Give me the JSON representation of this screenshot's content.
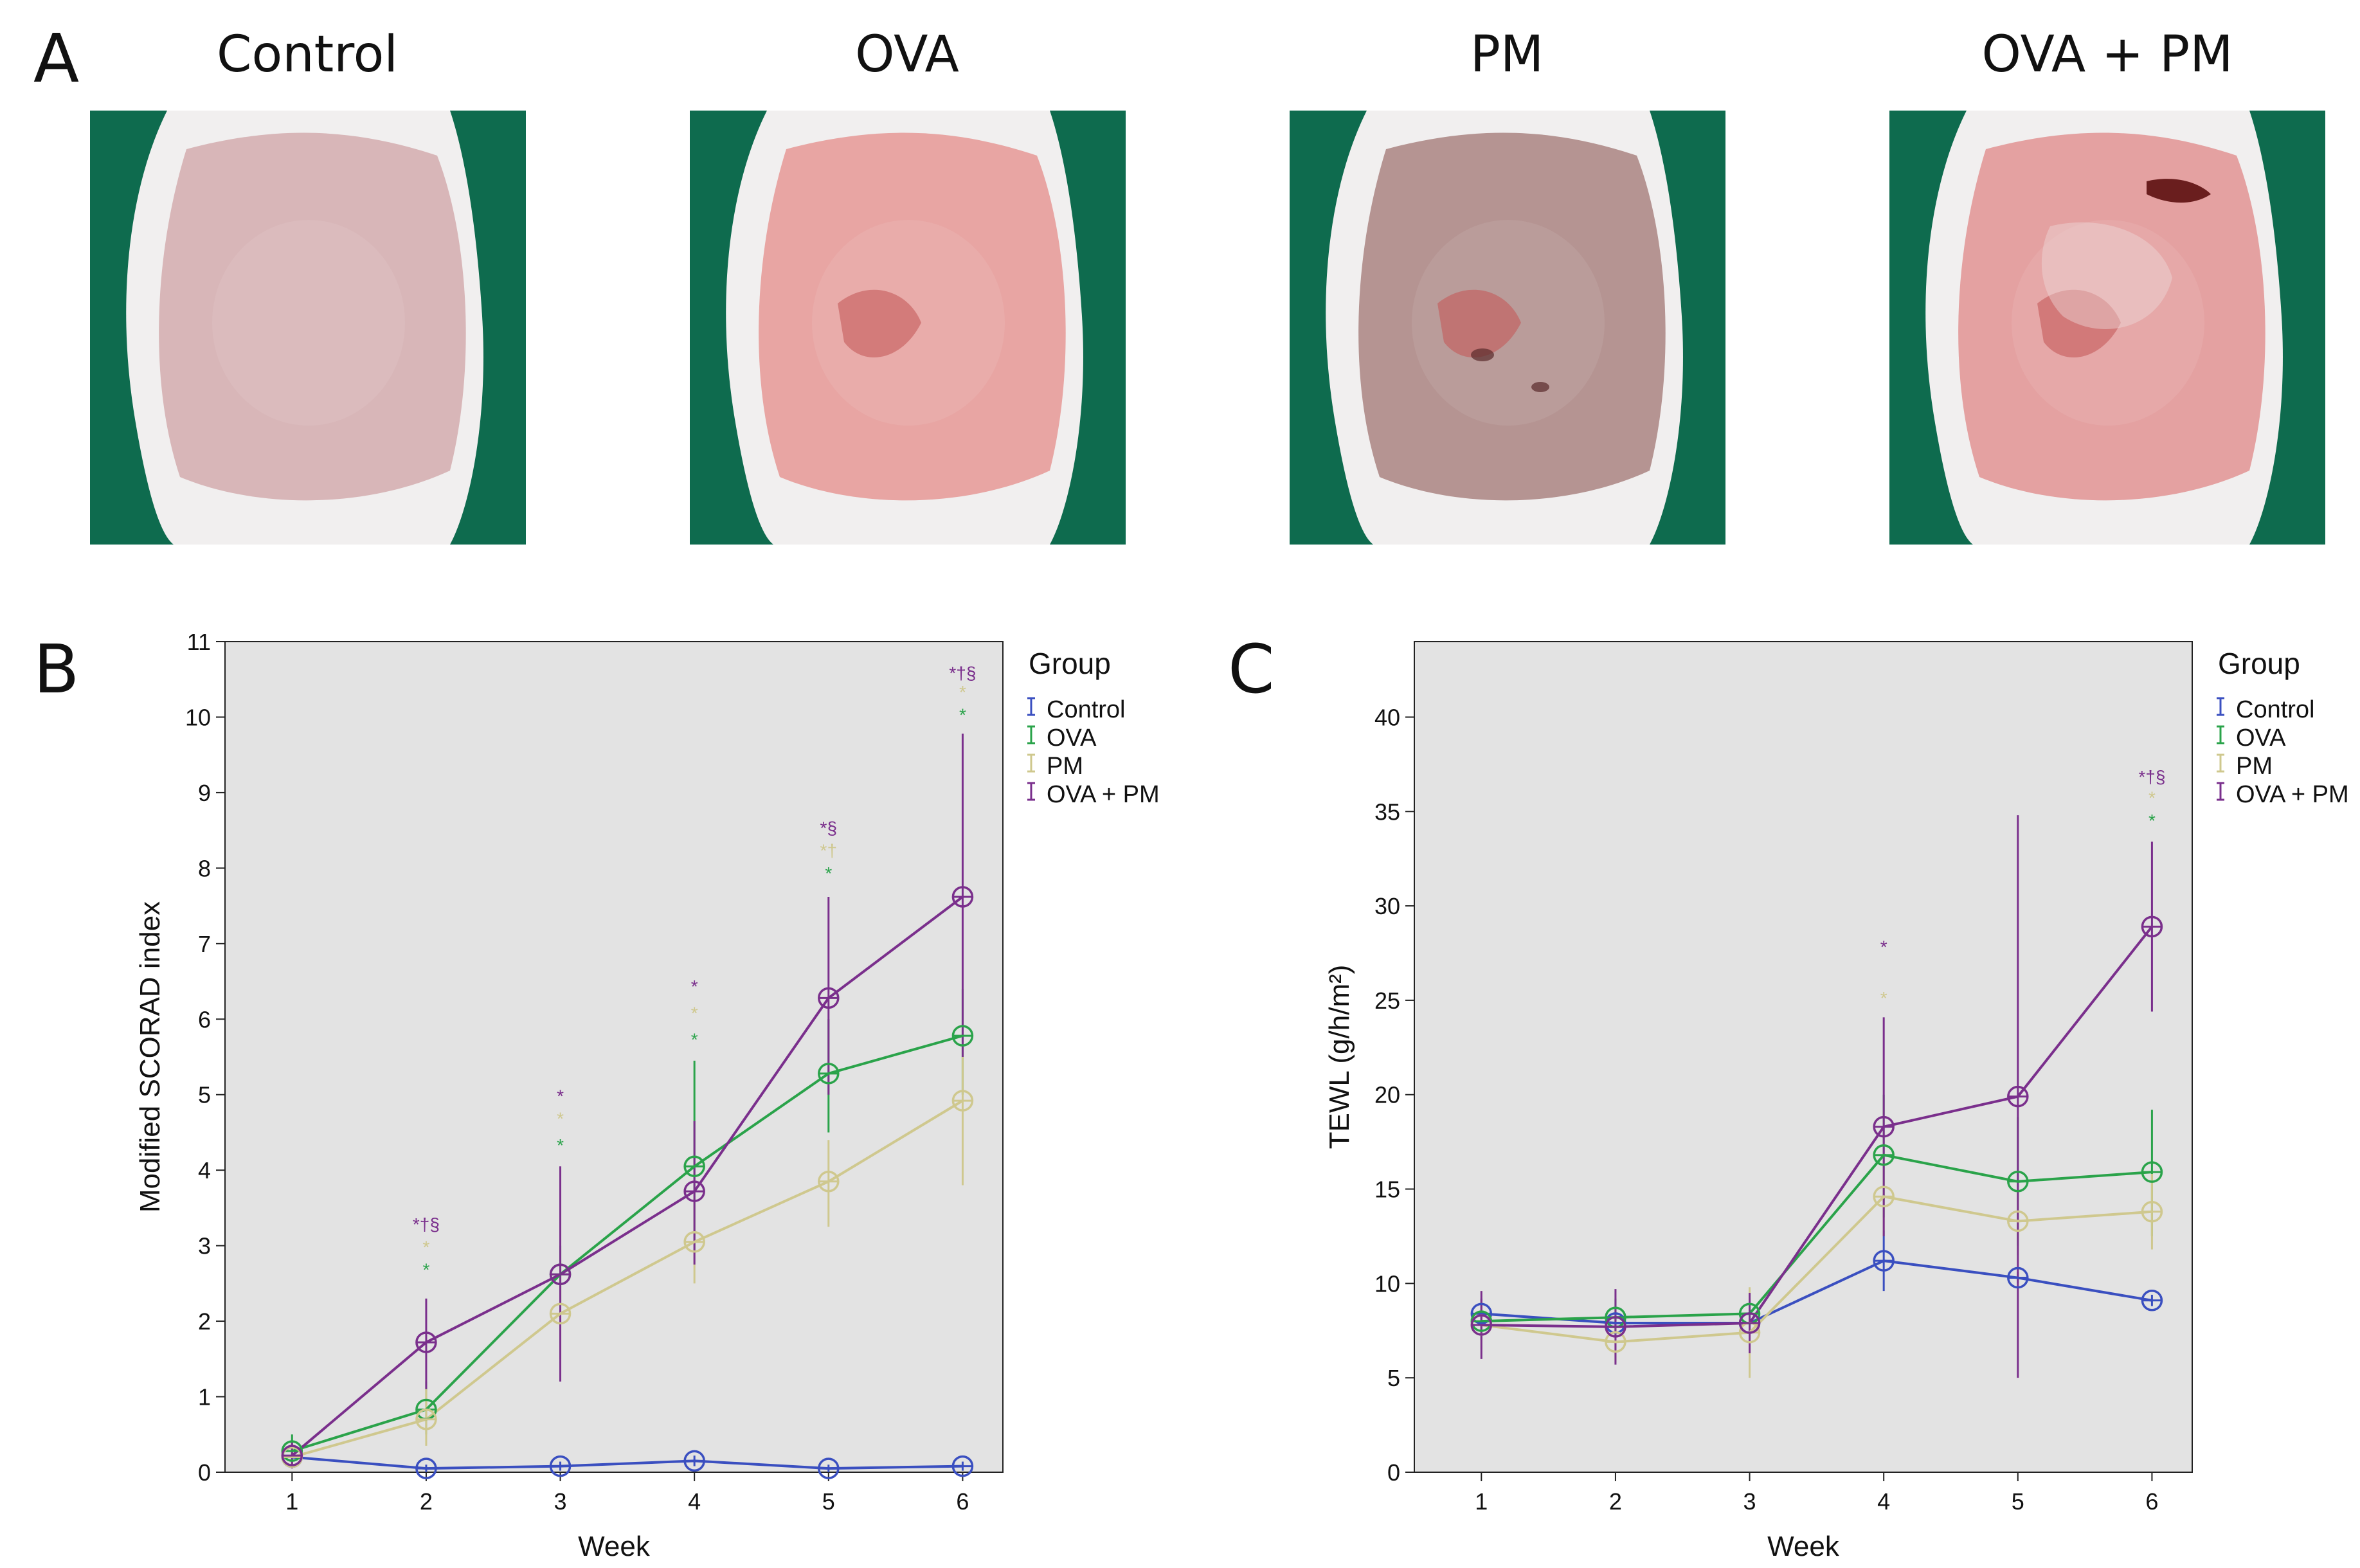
{
  "panel_labels": {
    "a": "A",
    "b": "B",
    "c": "C"
  },
  "photos": [
    {
      "title": "Control",
      "skin": "#d6b2b4"
    },
    {
      "title": "OVA",
      "skin": "#e7a09e"
    },
    {
      "title": "PM",
      "skin": "#b18e8c"
    },
    {
      "title": "OVA + PM",
      "skin": "#e39c9c"
    }
  ],
  "colors": {
    "Control": "#3a4fc0",
    "OVA": "#2aa34a",
    "PM": "#cfc88e",
    "OVA + PM": "#7a2f8c",
    "panel_bg": "#e3e3e3"
  },
  "chart_data": [
    {
      "type": "line",
      "xlabel": "Week",
      "ylabel": "Modified SCORAD index",
      "x": [
        1,
        2,
        3,
        4,
        5,
        6
      ],
      "xlim": [
        0.5,
        6.3
      ],
      "ylim": [
        0,
        11
      ],
      "yticks": [
        0,
        1,
        2,
        3,
        4,
        5,
        6,
        7,
        8,
        9,
        10,
        11
      ],
      "legend_title": "Group",
      "legend_position": "right",
      "grid": false,
      "series": [
        {
          "name": "Control",
          "values": [
            0.2,
            0.05,
            0.08,
            0.15,
            0.05,
            0.08
          ],
          "err_low": [
            0.15,
            0.0,
            0.02,
            0.08,
            0.0,
            0.02
          ],
          "err_high": [
            0.25,
            0.1,
            0.14,
            0.22,
            0.1,
            0.14
          ]
        },
        {
          "name": "OVA",
          "values": [
            0.28,
            0.83,
            2.62,
            4.05,
            5.28,
            5.78
          ],
          "err_low": [
            0.1,
            0.5,
            2.2,
            2.9,
            4.5,
            5.0
          ],
          "err_high": [
            0.5,
            1.2,
            3.0,
            5.45,
            6.0,
            6.4
          ]
        },
        {
          "name": "PM",
          "values": [
            0.2,
            0.7,
            2.1,
            3.05,
            3.85,
            4.92
          ],
          "err_low": [
            0.05,
            0.35,
            1.5,
            2.5,
            3.25,
            3.8
          ],
          "err_high": [
            0.4,
            1.1,
            2.8,
            3.7,
            4.4,
            5.5
          ]
        },
        {
          "name": "OVA + PM",
          "values": [
            0.22,
            1.72,
            2.62,
            3.72,
            6.28,
            7.62
          ],
          "err_low": [
            0.05,
            1.1,
            1.2,
            2.75,
            5.0,
            5.5
          ],
          "err_high": [
            0.4,
            2.3,
            4.05,
            4.65,
            7.62,
            9.78
          ]
        }
      ],
      "annotations": [
        {
          "x": 2,
          "y": 3.2,
          "text": "*†§",
          "color": "OVA + PM"
        },
        {
          "x": 2,
          "y": 2.9,
          "text": "*",
          "color": "PM"
        },
        {
          "x": 2,
          "y": 2.6,
          "text": "*",
          "color": "OVA"
        },
        {
          "x": 3,
          "y": 4.9,
          "text": "*",
          "color": "OVA + PM"
        },
        {
          "x": 3,
          "y": 4.6,
          "text": "*",
          "color": "PM"
        },
        {
          "x": 3,
          "y": 4.25,
          "text": "*",
          "color": "OVA"
        },
        {
          "x": 4,
          "y": 6.35,
          "text": "*",
          "color": "OVA + PM"
        },
        {
          "x": 4,
          "y": 6.0,
          "text": "*",
          "color": "PM"
        },
        {
          "x": 4,
          "y": 5.65,
          "text": "*",
          "color": "OVA"
        },
        {
          "x": 5,
          "y": 8.45,
          "text": "*§",
          "color": "OVA + PM"
        },
        {
          "x": 5,
          "y": 8.15,
          "text": "*†",
          "color": "PM"
        },
        {
          "x": 5,
          "y": 7.85,
          "text": "*",
          "color": "OVA"
        },
        {
          "x": 6,
          "y": 10.5,
          "text": "*†§",
          "color": "OVA + PM"
        },
        {
          "x": 6,
          "y": 10.25,
          "text": "*",
          "color": "PM"
        },
        {
          "x": 6,
          "y": 9.95,
          "text": "*",
          "color": "OVA"
        }
      ]
    },
    {
      "type": "line",
      "xlabel": "Week",
      "ylabel": "TEWL (g/h/m²)",
      "x": [
        1,
        2,
        3,
        4,
        5,
        6
      ],
      "xlim": [
        0.5,
        6.3
      ],
      "ylim": [
        0,
        44
      ],
      "yticks": [
        0,
        5,
        10,
        15,
        20,
        25,
        30,
        35,
        40
      ],
      "legend_title": "Group",
      "legend_position": "right",
      "grid": false,
      "series": [
        {
          "name": "Control",
          "values": [
            8.4,
            7.9,
            7.9,
            11.2,
            10.3,
            9.1
          ],
          "err_low": [
            7.6,
            7.5,
            7.4,
            9.6,
            10.0,
            8.8
          ],
          "err_high": [
            9.2,
            8.3,
            8.4,
            12.8,
            10.6,
            9.4
          ]
        },
        {
          "name": "OVA",
          "values": [
            8.0,
            8.2,
            8.4,
            16.8,
            15.4,
            15.9
          ],
          "err_low": [
            7.0,
            7.2,
            7.6,
            13.5,
            12.0,
            12.5
          ],
          "err_high": [
            9.0,
            9.2,
            9.2,
            20.0,
            18.8,
            19.2
          ]
        },
        {
          "name": "PM",
          "values": [
            7.8,
            6.9,
            7.4,
            14.6,
            13.3,
            13.8
          ],
          "err_low": [
            6.5,
            5.8,
            5.0,
            12.5,
            11.5,
            11.8
          ],
          "err_high": [
            9.1,
            8.0,
            9.8,
            16.7,
            15.1,
            15.8
          ]
        },
        {
          "name": "OVA + PM",
          "values": [
            7.8,
            7.7,
            7.9,
            18.3,
            19.9,
            28.9
          ],
          "err_low": [
            6.0,
            5.7,
            6.3,
            12.5,
            5.0,
            24.4
          ],
          "err_high": [
            9.6,
            9.7,
            9.5,
            24.1,
            34.8,
            33.4
          ]
        }
      ],
      "annotations": [
        {
          "x": 4,
          "y": 27.5,
          "text": "*",
          "color": "OVA + PM"
        },
        {
          "x": 4,
          "y": 24.8,
          "text": "*",
          "color": "PM"
        },
        {
          "x": 6,
          "y": 36.5,
          "text": "*†§",
          "color": "OVA + PM"
        },
        {
          "x": 6,
          "y": 35.4,
          "text": "*",
          "color": "PM"
        },
        {
          "x": 6,
          "y": 34.2,
          "text": "*",
          "color": "OVA"
        }
      ]
    }
  ]
}
